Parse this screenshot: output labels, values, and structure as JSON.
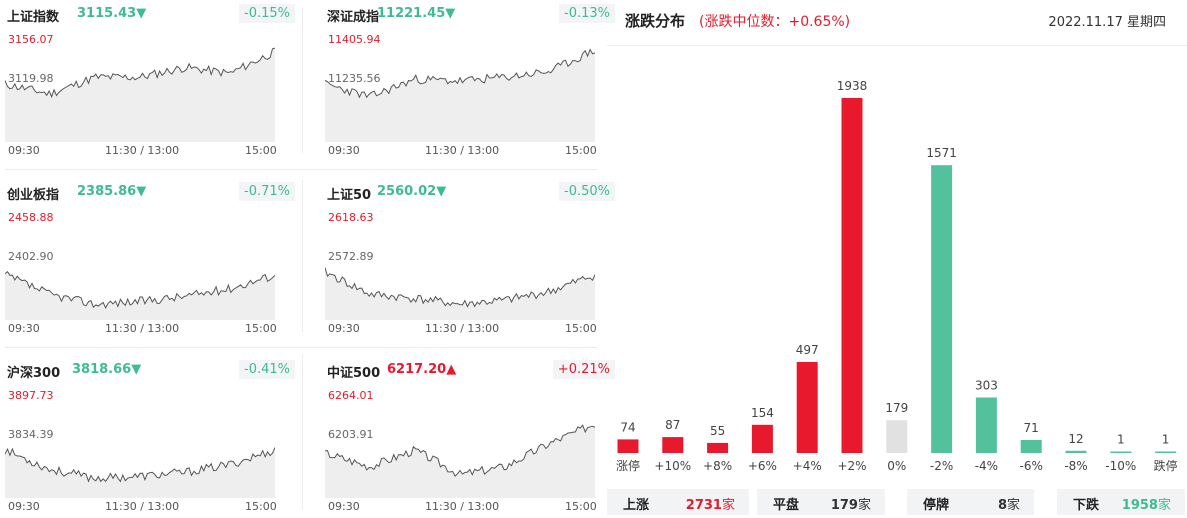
{
  "indices": [
    {
      "id": "sh",
      "name": "上证指数",
      "price": "3115.43",
      "arrow": "▼",
      "change": "-0.15%",
      "direction": "down",
      "axis_high": "3156.07",
      "axis_mid": "3119.98",
      "axis_low": "3083.89",
      "times": [
        "09:30",
        "11:30 / 13:00",
        "15:00"
      ],
      "seed": 11,
      "trend": [
        0.55,
        0.45,
        0.62,
        0.62,
        0.72,
        0.66,
        0.88
      ]
    },
    {
      "id": "sz",
      "name": "深证成指",
      "price": "11221.45",
      "arrow": "▼",
      "change": "-0.13%",
      "direction": "down",
      "axis_high": "11405.94",
      "axis_mid": "11235.56",
      "axis_low": "11065.18",
      "times": [
        "09:30",
        "11:30 / 13:00",
        "15:00"
      ],
      "seed": 23,
      "trend": [
        0.55,
        0.42,
        0.6,
        0.58,
        0.62,
        0.68,
        0.9
      ]
    },
    {
      "id": "cyb",
      "name": "创业板指",
      "price": "2385.86",
      "arrow": "▼",
      "change": "-0.71%",
      "direction": "down",
      "axis_high": "2458.88",
      "axis_mid": "2402.90",
      "axis_low": "2346.93",
      "times": [
        "09:30",
        "11:30 / 13:00",
        "15:00"
      ],
      "seed": 37,
      "trend": [
        0.42,
        0.22,
        0.12,
        0.15,
        0.2,
        0.28,
        0.42
      ]
    },
    {
      "id": "sz50",
      "name": "上证50",
      "price": "2560.02",
      "arrow": "▼",
      "change": "-0.50%",
      "direction": "down",
      "axis_high": "2618.63",
      "axis_mid": "2572.89",
      "axis_low": "2527.14",
      "times": [
        "09:30",
        "11:30 / 13:00",
        "15:00"
      ],
      "seed": 41,
      "trend": [
        0.45,
        0.22,
        0.18,
        0.12,
        0.16,
        0.25,
        0.42
      ]
    },
    {
      "id": "hs300",
      "name": "沪深300",
      "price": "3818.66",
      "arrow": "▼",
      "change": "-0.41%",
      "direction": "down",
      "axis_high": "3897.73",
      "axis_mid": "3834.39",
      "axis_low": "3771.05",
      "times": [
        "09:30",
        "11:30 / 13:00",
        "15:00"
      ],
      "seed": 53,
      "trend": [
        0.45,
        0.25,
        0.16,
        0.18,
        0.22,
        0.3,
        0.45
      ]
    },
    {
      "id": "zz500",
      "name": "中证500",
      "price": "6217.20",
      "arrow": "▲",
      "change": "+0.21%",
      "direction": "up",
      "axis_high": "6264.01",
      "axis_mid": "6203.91",
      "axis_low": "6143.82",
      "times": [
        "09:30",
        "11:30 / 13:00",
        "15:00"
      ],
      "seed": 67,
      "trend": [
        0.42,
        0.28,
        0.45,
        0.2,
        0.28,
        0.52,
        0.72
      ]
    }
  ],
  "distribution": {
    "title": "涨跌分布",
    "subtitle": "(涨跌中位数：+0.65%)",
    "date": "2022.11.17 星期四",
    "colors": {
      "up": "#e8192c",
      "flat": "#e1e1e1",
      "down": "#52c19c"
    },
    "chart_data": {
      "type": "bar",
      "categories": [
        "涨停",
        "+10%",
        "+8%",
        "+6%",
        "+4%",
        "+2%",
        "0%",
        "-2%",
        "-4%",
        "-6%",
        "-8%",
        "-10%",
        "跌停"
      ],
      "values": [
        74,
        87,
        55,
        154,
        497,
        1938,
        179,
        1571,
        303,
        71,
        12,
        1,
        1
      ],
      "groups": [
        "up",
        "up",
        "up",
        "up",
        "up",
        "up",
        "flat",
        "down",
        "down",
        "down",
        "down",
        "down",
        "down"
      ],
      "title": "涨跌分布",
      "ylim": [
        0,
        1938
      ]
    },
    "stats": [
      {
        "label": "上涨",
        "value": "2731",
        "unit": "家",
        "tone": "up"
      },
      {
        "label": "平盘",
        "value": "179",
        "unit": "家",
        "tone": "flat"
      },
      {
        "label": "停牌",
        "value": "8",
        "unit": "家",
        "tone": "flat"
      },
      {
        "label": "下跌",
        "value": "1958",
        "unit": "家",
        "tone": "down"
      }
    ]
  }
}
